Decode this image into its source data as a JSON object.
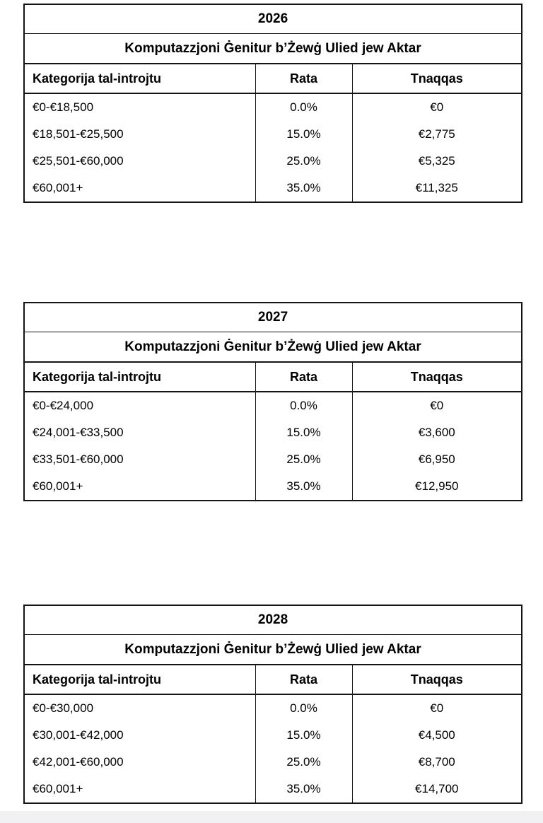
{
  "page": {
    "background": "#ffffff",
    "bottom_strip_color": "#f1f1f3",
    "border_color": "#141414"
  },
  "tables": [
    {
      "year": "2026",
      "subtitle": "Komputazzjoni Ġenitur b’Żewġ Ulied jew Aktar",
      "columns": [
        "Kategorija tal-introjtu",
        "Rata",
        "Tnaqqas"
      ],
      "rows": [
        [
          "€0-€18,500",
          "0.0%",
          "€0"
        ],
        [
          "€18,501-€25,500",
          "15.0%",
          "€2,775"
        ],
        [
          "€25,501-€60,000",
          "25.0%",
          "€5,325"
        ],
        [
          "€60,001+",
          "35.0%",
          "€11,325"
        ]
      ]
    },
    {
      "year": "2027",
      "subtitle": "Komputazzjoni Ġenitur b’Żewġ Ulied jew Aktar",
      "columns": [
        "Kategorija tal-introjtu",
        "Rata",
        "Tnaqqas"
      ],
      "rows": [
        [
          "€0-€24,000",
          "0.0%",
          "€0"
        ],
        [
          "€24,001-€33,500",
          "15.0%",
          "€3,600"
        ],
        [
          "€33,501-€60,000",
          "25.0%",
          "€6,950"
        ],
        [
          "€60,001+",
          "35.0%",
          "€12,950"
        ]
      ]
    },
    {
      "year": "2028",
      "subtitle": "Komputazzjoni Ġenitur b’Żewġ Ulied jew Aktar",
      "columns": [
        "Kategorija tal-introjtu",
        "Rata",
        "Tnaqqas"
      ],
      "rows": [
        [
          "€0-€30,000",
          "0.0%",
          "€0"
        ],
        [
          "€30,001-€42,000",
          "15.0%",
          "€4,500"
        ],
        [
          "€42,001-€60,000",
          "25.0%",
          "€8,700"
        ],
        [
          "€60,001+",
          "35.0%",
          "€14,700"
        ]
      ]
    }
  ]
}
